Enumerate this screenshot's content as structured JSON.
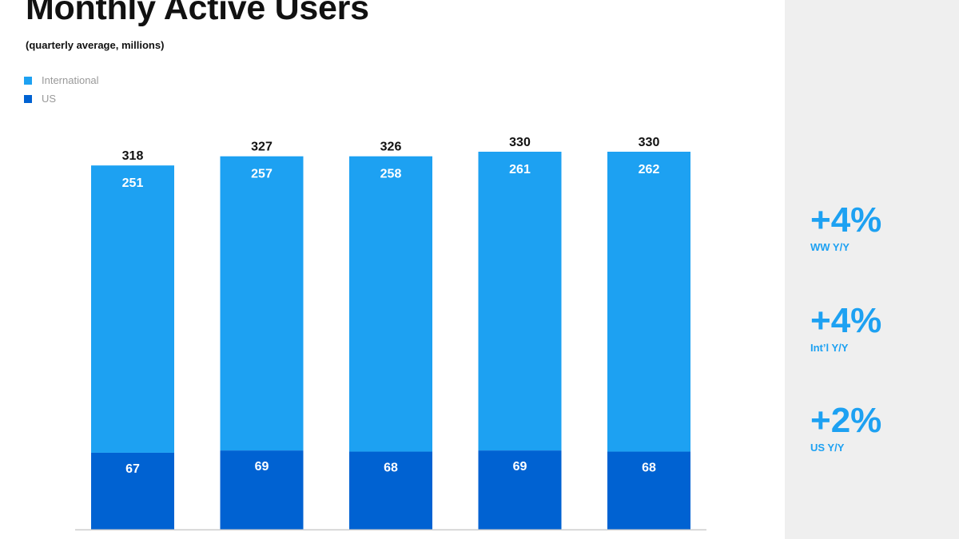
{
  "title": "Monthly Active Users",
  "subtitle": "(quarterly average, millions)",
  "colors": {
    "international": "#1da1f2",
    "us": "#0062d2",
    "stat_accent": "#1da1f2",
    "axis": "#cccccc"
  },
  "chart_data": {
    "type": "bar",
    "stacked": true,
    "categories": [
      "",
      "",
      "",
      "",
      ""
    ],
    "series": [
      {
        "name": "US",
        "values": [
          67,
          69,
          68,
          69,
          68
        ]
      },
      {
        "name": "International",
        "values": [
          251,
          257,
          258,
          261,
          262
        ]
      }
    ],
    "totals": [
      318,
      327,
      326,
      330,
      330
    ],
    "ylim": [
      0,
      330
    ],
    "legend": "top-left",
    "grid": false
  },
  "legend_items": [
    {
      "label": "International"
    },
    {
      "label": "US"
    }
  ],
  "stats": [
    {
      "value": "+4%",
      "label": "WW Y/Y"
    },
    {
      "value": "+4%",
      "label": "Int’l Y/Y"
    },
    {
      "value": "+2%",
      "label": "US Y/Y"
    }
  ]
}
